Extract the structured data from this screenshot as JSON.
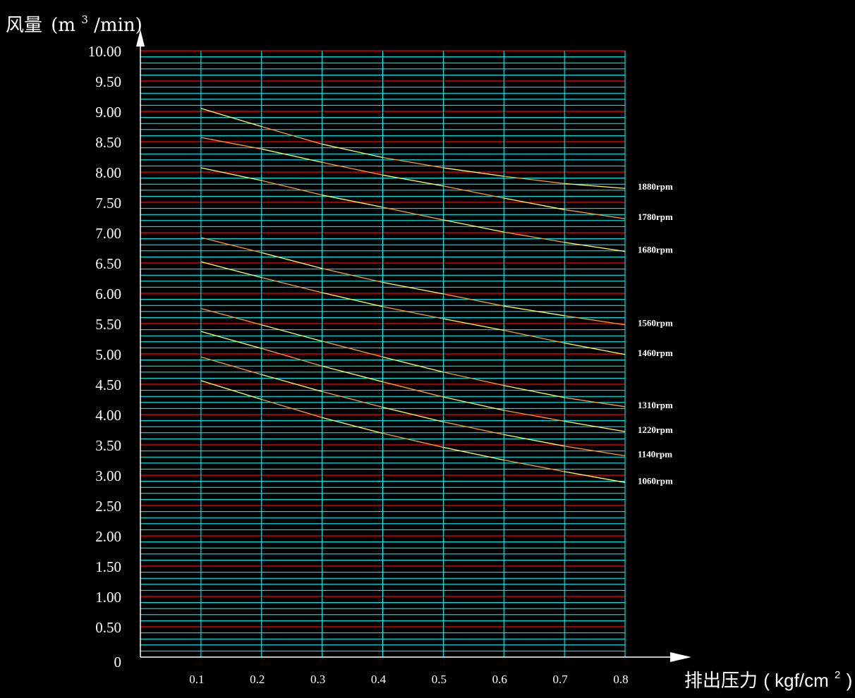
{
  "chart_data": {
    "type": "line",
    "ylabel": "风量",
    "ylabel_unit_open": "(m",
    "ylabel_unit_sup": "3",
    "ylabel_unit_close": "/min)",
    "xlabel": "排出压力",
    "xlabel_unit_open": "( kgf/cm",
    "xlabel_unit_sup": "2",
    "xlabel_unit_close": ")",
    "xlim": [
      0,
      0.8
    ],
    "ylim": [
      0,
      10
    ],
    "x_ticks": [
      "0.1",
      "0.2",
      "0.3",
      "0.4",
      "0.5",
      "0.6",
      "0.7",
      "0.8"
    ],
    "x_tick_values": [
      0.1,
      0.2,
      0.3,
      0.4,
      0.5,
      0.6,
      0.7,
      0.8
    ],
    "y_ticks": [
      "0",
      "0.50",
      "1.00",
      "1.50",
      "2.00",
      "2.50",
      "3.00",
      "3.50",
      "4.00",
      "4.50",
      "5.00",
      "5.50",
      "6.00",
      "6.50",
      "7.00",
      "7.50",
      "8.00",
      "8.50",
      "9.00",
      "9.50",
      "10.00"
    ],
    "y_tick_values": [
      0,
      0.5,
      1,
      1.5,
      2,
      2.5,
      3,
      3.5,
      4,
      4.5,
      5,
      5.5,
      6,
      6.5,
      7,
      7.5,
      8,
      8.5,
      9,
      9.5,
      10
    ],
    "grid": true,
    "colors": {
      "background": "#000000",
      "minor_grid": "#00ffff",
      "major_grid": "#ff0000",
      "series_a": "#ffff66",
      "series_b": "#ff9933",
      "axis": "#ffffff"
    },
    "x": [
      0.1,
      0.2,
      0.3,
      0.4,
      0.5,
      0.6,
      0.7,
      0.8
    ],
    "series": [
      {
        "name": "1880rpm",
        "values": [
          9.05,
          8.75,
          8.46,
          8.24,
          8.07,
          7.93,
          7.81,
          7.73
        ]
      },
      {
        "name": "1780rpm",
        "values": [
          8.57,
          8.38,
          8.16,
          7.95,
          7.77,
          7.57,
          7.38,
          7.23
        ]
      },
      {
        "name": "1680rpm",
        "values": [
          8.07,
          7.86,
          7.62,
          7.42,
          7.21,
          7.01,
          6.84,
          6.69
        ]
      },
      {
        "name": "1560rpm",
        "values": [
          6.92,
          6.67,
          6.41,
          6.18,
          5.99,
          5.79,
          5.63,
          5.48
        ]
      },
      {
        "name": "1460rpm",
        "values": [
          6.52,
          6.26,
          6.01,
          5.78,
          5.58,
          5.39,
          5.18,
          4.99
        ]
      },
      {
        "name": "1310rpm",
        "values": [
          5.75,
          5.48,
          5.21,
          4.95,
          4.7,
          4.48,
          4.28,
          4.13
        ]
      },
      {
        "name": "1220rpm",
        "values": [
          5.37,
          5.09,
          4.8,
          4.54,
          4.29,
          4.07,
          3.89,
          3.72
        ]
      },
      {
        "name": "1140rpm",
        "values": [
          4.95,
          4.66,
          4.38,
          4.12,
          3.88,
          3.67,
          3.48,
          3.32
        ]
      },
      {
        "name": "1060rpm",
        "values": [
          4.56,
          4.25,
          3.95,
          3.69,
          3.46,
          3.25,
          3.06,
          2.88
        ]
      }
    ]
  }
}
